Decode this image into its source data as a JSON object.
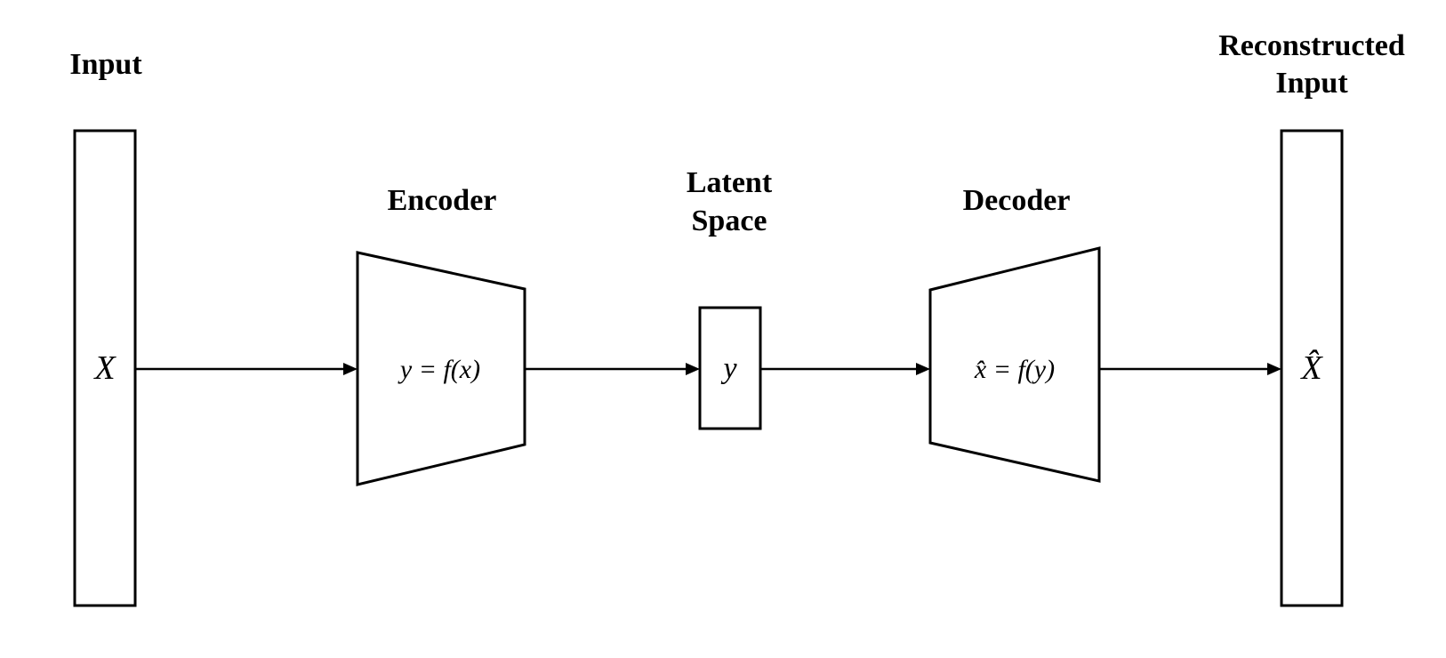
{
  "labels": {
    "input": "Input",
    "encoder": "Encoder",
    "latent_line1": "Latent",
    "latent_line2": "Space",
    "decoder": "Decoder",
    "reconstructed_line1": "Reconstructed",
    "reconstructed_line2": "Input"
  },
  "formulas": {
    "input": "X",
    "encoder": "y = f(x)",
    "latent": "y",
    "decoder": "x̂ = f(y)",
    "reconstructed": "X̂"
  },
  "colors": {
    "stroke": "#000000",
    "fill": "#ffffff"
  }
}
